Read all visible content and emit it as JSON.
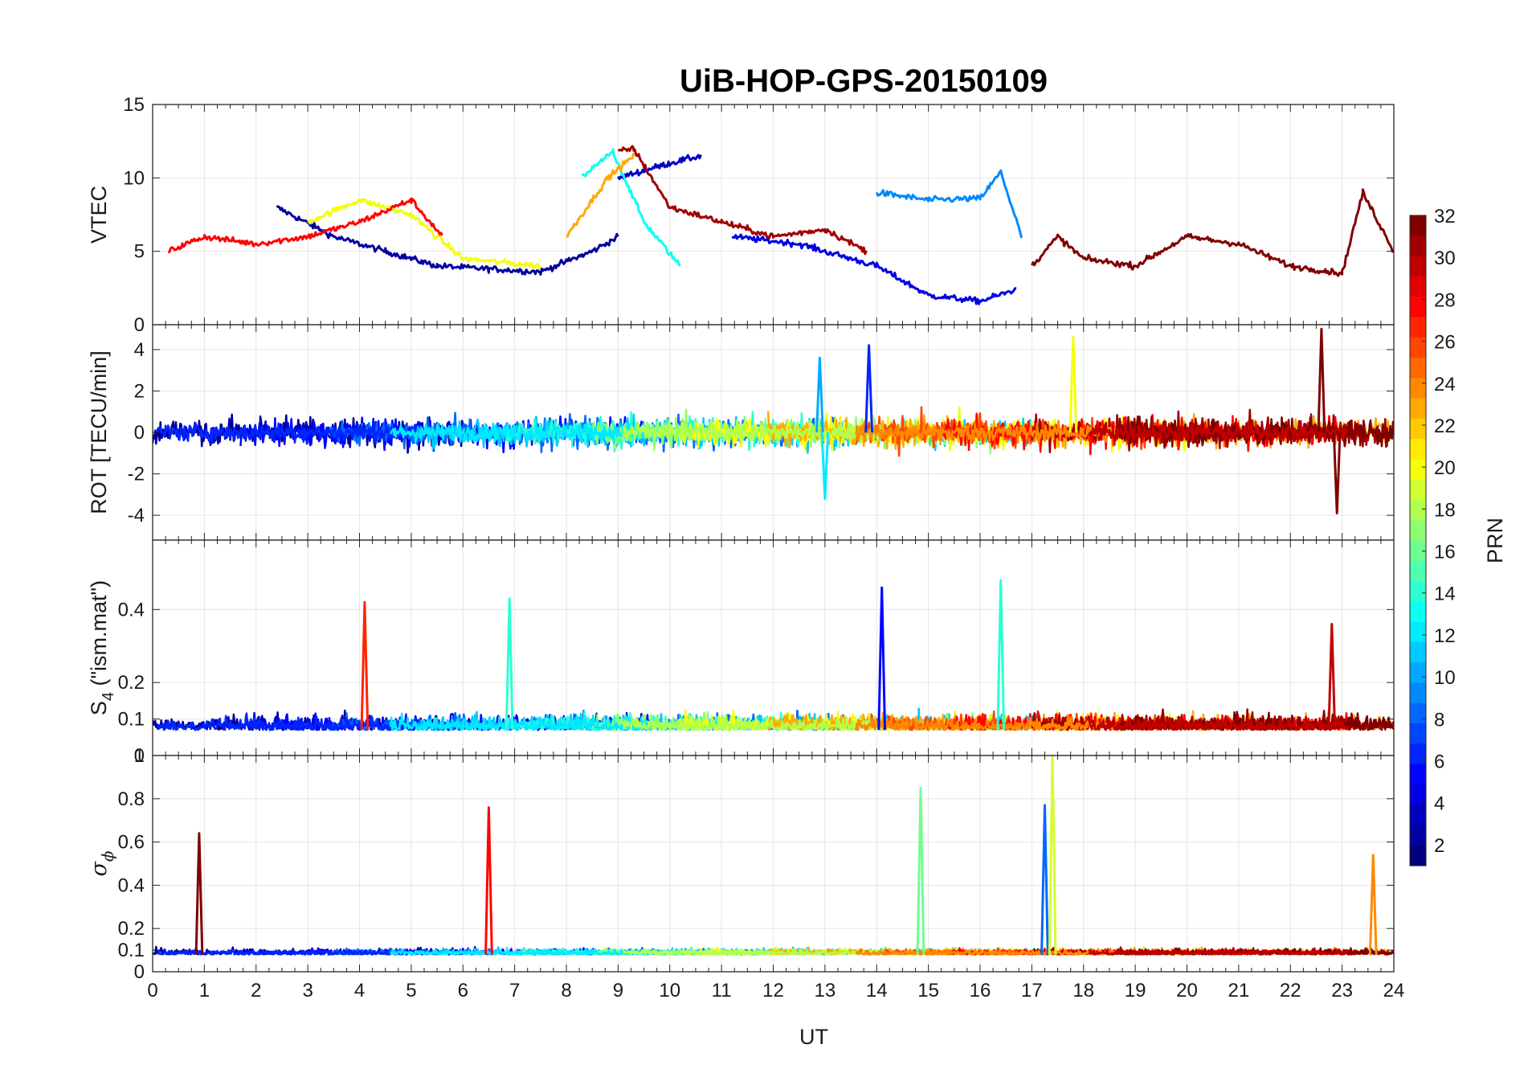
{
  "title": "UiB-HOP-GPS-20150109",
  "xlabel": "UT",
  "x_ticks": [
    "0",
    "1",
    "2",
    "3",
    "4",
    "5",
    "6",
    "7",
    "8",
    "9",
    "10",
    "11",
    "12",
    "13",
    "14",
    "15",
    "16",
    "17",
    "18",
    "19",
    "20",
    "21",
    "22",
    "23",
    "24"
  ],
  "colorbar": {
    "label": "PRN",
    "ticks": [
      "2",
      "4",
      "6",
      "8",
      "10",
      "12",
      "14",
      "16",
      "18",
      "20",
      "22",
      "24",
      "26",
      "28",
      "30",
      "32"
    ],
    "range": [
      1,
      32
    ],
    "colormap": "jet"
  },
  "panels": [
    {
      "id": "vtec",
      "ylabel": "VTEC",
      "ylim": [
        0,
        15
      ],
      "y_ticks": [
        {
          "value": 0,
          "label": "0"
        },
        {
          "value": 5,
          "label": "5"
        },
        {
          "value": 10,
          "label": "10"
        },
        {
          "value": 15,
          "label": "15"
        }
      ]
    },
    {
      "id": "rot",
      "ylabel": "ROT [TECU/min]",
      "ylim": [
        -5.2,
        5.2
      ],
      "y_ticks": [
        {
          "value": -4,
          "label": "-4"
        },
        {
          "value": -2,
          "label": "-2"
        },
        {
          "value": 0,
          "label": "0"
        },
        {
          "value": 2,
          "label": "2"
        },
        {
          "value": 4,
          "label": "4"
        }
      ]
    },
    {
      "id": "s4",
      "ylabel_main": "S",
      "ylabel_sub": "4",
      "ylabel_rest": " (\"ism.mat\")",
      "ylim": [
        0,
        0.59
      ],
      "y_ticks": [
        {
          "value": 0,
          "label": "0"
        },
        {
          "value": 0.1,
          "label": "0.1"
        },
        {
          "value": 0.2,
          "label": "0.2"
        },
        {
          "value": 0.4,
          "label": "0.4"
        }
      ]
    },
    {
      "id": "sigphi",
      "ylabel_main": "σ",
      "ylabel_sub": "ϕ",
      "ylim": [
        0,
        1
      ],
      "y_ticks": [
        {
          "value": 0,
          "label": "0"
        },
        {
          "value": 0.1,
          "label": "0.1"
        },
        {
          "value": 0.2,
          "label": "0.2"
        },
        {
          "value": 0.4,
          "label": "0.4"
        },
        {
          "value": 0.6,
          "label": "0.6"
        },
        {
          "value": 0.8,
          "label": "0.8"
        },
        {
          "value": 1,
          "label": "1"
        }
      ]
    }
  ],
  "chart_data": [
    {
      "type": "line",
      "panel": "vtec",
      "ylabel": "VTEC",
      "xlim": [
        0,
        24
      ],
      "ylim": [
        0,
        15
      ],
      "series": [
        {
          "prn": 2,
          "x": [
            2.4,
            3.5,
            4.5,
            5.5,
            6.5,
            7.5,
            8.5,
            9.0
          ],
          "y": [
            8,
            6,
            5,
            4,
            3.8,
            3.6,
            5,
            6
          ]
        },
        {
          "prn": 3,
          "x": [
            9.0,
            9.5,
            10.0,
            10.6
          ],
          "y": [
            10,
            10.5,
            11,
            11.5
          ]
        },
        {
          "prn": 4,
          "x": [
            11.2,
            12.5,
            13.0,
            14.0,
            15.0,
            16.0,
            16.7
          ],
          "y": [
            6,
            5.5,
            5,
            4,
            2,
            1.6,
            2.4
          ]
        },
        {
          "prn": 9,
          "x": [
            14.0,
            15.0,
            16.0,
            16.4,
            16.8
          ],
          "y": [
            9,
            8.5,
            8.6,
            10.4,
            6
          ]
        },
        {
          "prn": 13,
          "x": [
            8.3,
            8.9,
            9.5,
            10.2
          ],
          "y": [
            10,
            11.8,
            7,
            4
          ]
        },
        {
          "prn": 20,
          "x": [
            3.0,
            4.0,
            5.0,
            6.0,
            7.5
          ],
          "y": [
            7,
            8.5,
            7.5,
            4.5,
            4
          ]
        },
        {
          "prn": 23,
          "x": [
            8.0,
            8.8,
            9.3
          ],
          "y": [
            6,
            10,
            11.5
          ]
        },
        {
          "prn": 28,
          "x": [
            0.3,
            1.0,
            2.0,
            3.0,
            4.0,
            5.0,
            5.6
          ],
          "y": [
            5,
            6,
            5.5,
            6,
            7,
            8.5,
            6
          ]
        },
        {
          "prn": 31,
          "x": [
            9.0,
            9.3,
            10.0,
            11.0,
            12.0,
            13.0,
            13.8
          ],
          "y": [
            11.8,
            12,
            8,
            7,
            6,
            6.5,
            5
          ]
        },
        {
          "prn": 32,
          "x": [
            17.0,
            17.5,
            18.0,
            19.0,
            20.0,
            21.0,
            22.0,
            23.0,
            23.4,
            24.0
          ],
          "y": [
            4,
            6,
            4.5,
            4,
            6,
            5.5,
            4,
            3.5,
            9,
            5
          ]
        }
      ]
    },
    {
      "type": "line",
      "panel": "rot",
      "ylabel": "ROT [TECU/min]",
      "xlim": [
        0,
        24
      ],
      "ylim": [
        -5.2,
        5.2
      ],
      "spikes": [
        {
          "prn": 10,
          "x": 12.9,
          "y": 3.6
        },
        {
          "prn": 6,
          "x": 13.85,
          "y": 4.2
        },
        {
          "prn": 12,
          "x": 13.0,
          "y": -3.2
        },
        {
          "prn": 20,
          "x": 17.8,
          "y": 4.6
        },
        {
          "prn": 32,
          "x": 22.6,
          "y": 5.0
        },
        {
          "prn": 32,
          "x": 22.9,
          "y": -3.9
        }
      ]
    },
    {
      "type": "line",
      "panel": "s4",
      "ylabel": "S4 (\"ism.mat\")",
      "xlim": [
        0,
        24
      ],
      "ylim": [
        0,
        0.59
      ],
      "spikes": [
        {
          "prn": 27,
          "x": 4.1,
          "y": 0.42
        },
        {
          "prn": 14,
          "x": 6.9,
          "y": 0.43
        },
        {
          "prn": 5,
          "x": 14.1,
          "y": 0.46
        },
        {
          "prn": 14,
          "x": 16.4,
          "y": 0.48
        },
        {
          "prn": 30,
          "x": 22.8,
          "y": 0.36
        }
      ]
    },
    {
      "type": "line",
      "panel": "sigphi",
      "ylabel": "σϕ",
      "xlim": [
        0,
        24
      ],
      "ylim": [
        0,
        1
      ],
      "spikes": [
        {
          "prn": 32,
          "x": 0.9,
          "y": 0.64
        },
        {
          "prn": 28,
          "x": 6.5,
          "y": 0.76
        },
        {
          "prn": 16,
          "x": 14.85,
          "y": 0.85
        },
        {
          "prn": 8,
          "x": 17.25,
          "y": 0.77
        },
        {
          "prn": 19,
          "x": 17.4,
          "y": 1.0
        },
        {
          "prn": 24,
          "x": 23.6,
          "y": 0.54
        }
      ]
    }
  ]
}
